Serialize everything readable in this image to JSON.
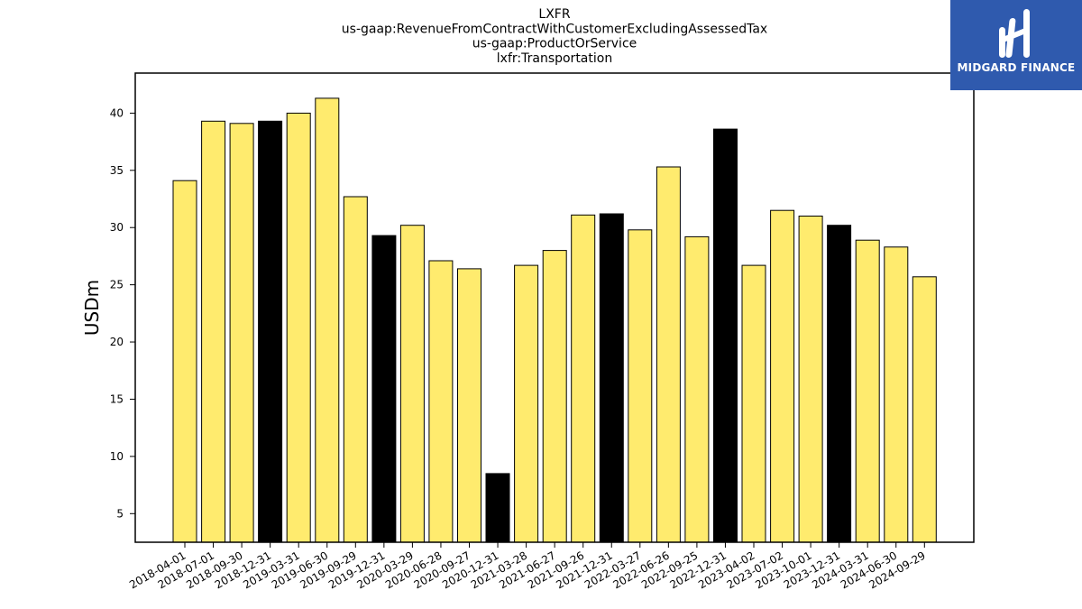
{
  "chart_data": {
    "type": "bar",
    "title_lines": [
      "LXFR",
      "us-gaap:RevenueFromContractWithCustomerExcludingAssessedTax",
      "us-gaap:ProductOrService",
      "lxfr:Transportation"
    ],
    "ylabel": "USDm",
    "xlabel": "",
    "ylim": [
      2.5,
      43.5
    ],
    "yticks": [
      5,
      10,
      15,
      20,
      25,
      30,
      35,
      40
    ],
    "grid": false,
    "categories": [
      "2018-04-01",
      "2018-07-01",
      "2018-09-30",
      "2018-12-31",
      "2019-03-31",
      "2019-06-30",
      "2019-09-29",
      "2019-12-31",
      "2020-03-29",
      "2020-06-28",
      "2020-09-27",
      "2020-12-31",
      "2021-03-28",
      "2021-06-27",
      "2021-09-26",
      "2021-12-31",
      "2022-03-27",
      "2022-06-26",
      "2022-09-25",
      "2022-12-31",
      "2023-04-02",
      "2023-07-02",
      "2023-10-01",
      "2023-12-31",
      "2024-03-31",
      "2024-06-30",
      "2024-09-29"
    ],
    "values": [
      34.1,
      39.3,
      39.1,
      39.3,
      40.0,
      41.3,
      32.7,
      29.3,
      30.2,
      27.1,
      26.4,
      8.5,
      26.7,
      28.0,
      31.1,
      31.2,
      29.8,
      35.3,
      29.2,
      38.6,
      26.7,
      31.5,
      31.0,
      30.2,
      28.9,
      28.3,
      25.7
    ],
    "highlight": [
      false,
      false,
      false,
      true,
      false,
      false,
      false,
      true,
      false,
      false,
      false,
      true,
      false,
      false,
      false,
      true,
      false,
      false,
      false,
      true,
      false,
      false,
      false,
      true,
      false,
      false,
      false
    ],
    "colors": {
      "bar": "#ffeb6e",
      "highlight": "#000000",
      "edge": "#000000"
    }
  },
  "logo": {
    "text": "MIDGARD FINANCE",
    "color": "#2f5aae"
  }
}
